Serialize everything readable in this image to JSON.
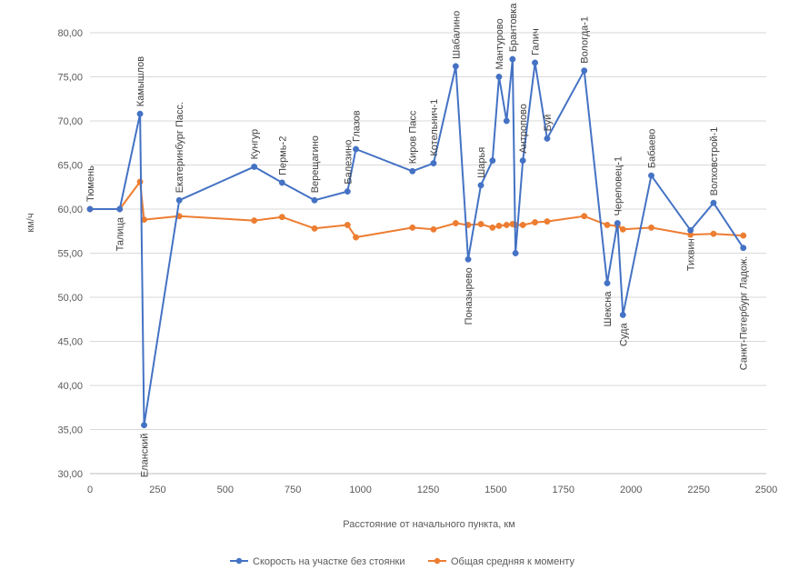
{
  "chart_data": {
    "type": "scatter",
    "title": "",
    "xlabel": "Расстояние от начального пункта, км",
    "ylabel": "км/ч",
    "xlim": [
      0,
      2500
    ],
    "ylim": [
      30,
      80
    ],
    "x_ticks": [
      "0",
      "250",
      "500",
      "750",
      "1000",
      "1250",
      "1500",
      "1750",
      "2000",
      "2250",
      "2500"
    ],
    "y_ticks": [
      "30,00",
      "35,00",
      "40,00",
      "45,00",
      "50,00",
      "55,00",
      "60,00",
      "65,00",
      "70,00",
      "75,00",
      "80,00"
    ],
    "grid": "horizontal",
    "legend_position": "bottom",
    "series": [
      {
        "name": "Скорость на участке без стоянки",
        "color": "#4472C4",
        "points": [
          {
            "x": 0,
            "y": 60.0,
            "label": "Тюмень"
          },
          {
            "x": 110,
            "y": 60.0,
            "label": "Талица"
          },
          {
            "x": 185,
            "y": 70.8,
            "label": "Камышлов"
          },
          {
            "x": 200,
            "y": 35.5,
            "label": "Еланский"
          },
          {
            "x": 330,
            "y": 61.0,
            "label": "Екатеринбург Пасс."
          },
          {
            "x": 607,
            "y": 64.8,
            "label": "Кунгур"
          },
          {
            "x": 710,
            "y": 63.0,
            "label": "Пермь-2"
          },
          {
            "x": 830,
            "y": 61.0,
            "label": "Верещагино"
          },
          {
            "x": 952,
            "y": 62.0,
            "label": "Балезино"
          },
          {
            "x": 983,
            "y": 66.8,
            "label": "Глазов"
          },
          {
            "x": 1192,
            "y": 64.3,
            "label": "Киров Пасс"
          },
          {
            "x": 1270,
            "y": 65.2,
            "label": "Котельнич-1"
          },
          {
            "x": 1352,
            "y": 76.2,
            "label": "Шабалино"
          },
          {
            "x": 1398,
            "y": 54.3,
            "label": "Поназырево"
          },
          {
            "x": 1445,
            "y": 62.7,
            "label": "Шарья"
          },
          {
            "x": 1488,
            "y": 65.5,
            "label": ""
          },
          {
            "x": 1512,
            "y": 75.0,
            "label": "Мантурово"
          },
          {
            "x": 1540,
            "y": 70.0,
            "label": ""
          },
          {
            "x": 1562,
            "y": 77.0,
            "label": "Брантовка"
          },
          {
            "x": 1573,
            "y": 55.0,
            "label": ""
          },
          {
            "x": 1600,
            "y": 65.5,
            "label": "Антропово"
          },
          {
            "x": 1645,
            "y": 76.6,
            "label": "Галич"
          },
          {
            "x": 1690,
            "y": 68.0,
            "label": "Буй"
          },
          {
            "x": 1827,
            "y": 75.7,
            "label": "Вологда-1"
          },
          {
            "x": 1912,
            "y": 51.6,
            "label": "Шексна"
          },
          {
            "x": 1950,
            "y": 58.4,
            "label": "Череповец-1"
          },
          {
            "x": 1970,
            "y": 48.0,
            "label": "Суда"
          },
          {
            "x": 2075,
            "y": 63.8,
            "label": "Бабаево"
          },
          {
            "x": 2220,
            "y": 57.6,
            "label": "Тихвин"
          },
          {
            "x": 2305,
            "y": 60.7,
            "label": "Волховстрой-1"
          },
          {
            "x": 2415,
            "y": 55.6,
            "label": "Санкт-Петербург Ладож."
          }
        ]
      },
      {
        "name": "Общая средняя к моменту",
        "color": "#ED7D31",
        "points": [
          {
            "x": 0,
            "y": 60.0
          },
          {
            "x": 110,
            "y": 60.0
          },
          {
            "x": 185,
            "y": 63.1
          },
          {
            "x": 200,
            "y": 58.8
          },
          {
            "x": 330,
            "y": 59.2
          },
          {
            "x": 607,
            "y": 58.7
          },
          {
            "x": 710,
            "y": 59.1
          },
          {
            "x": 830,
            "y": 57.8
          },
          {
            "x": 952,
            "y": 58.2
          },
          {
            "x": 983,
            "y": 56.8
          },
          {
            "x": 1192,
            "y": 57.9
          },
          {
            "x": 1270,
            "y": 57.7
          },
          {
            "x": 1352,
            "y": 58.4
          },
          {
            "x": 1398,
            "y": 58.2
          },
          {
            "x": 1445,
            "y": 58.3
          },
          {
            "x": 1488,
            "y": 57.9
          },
          {
            "x": 1512,
            "y": 58.1
          },
          {
            "x": 1540,
            "y": 58.2
          },
          {
            "x": 1562,
            "y": 58.3
          },
          {
            "x": 1573,
            "y": 58.2
          },
          {
            "x": 1600,
            "y": 58.2
          },
          {
            "x": 1645,
            "y": 58.5
          },
          {
            "x": 1690,
            "y": 58.6
          },
          {
            "x": 1827,
            "y": 59.2
          },
          {
            "x": 1912,
            "y": 58.2
          },
          {
            "x": 1950,
            "y": 58.1
          },
          {
            "x": 1970,
            "y": 57.7
          },
          {
            "x": 2075,
            "y": 57.9
          },
          {
            "x": 2220,
            "y": 57.1
          },
          {
            "x": 2305,
            "y": 57.2
          },
          {
            "x": 2415,
            "y": 57.0
          }
        ]
      }
    ]
  }
}
